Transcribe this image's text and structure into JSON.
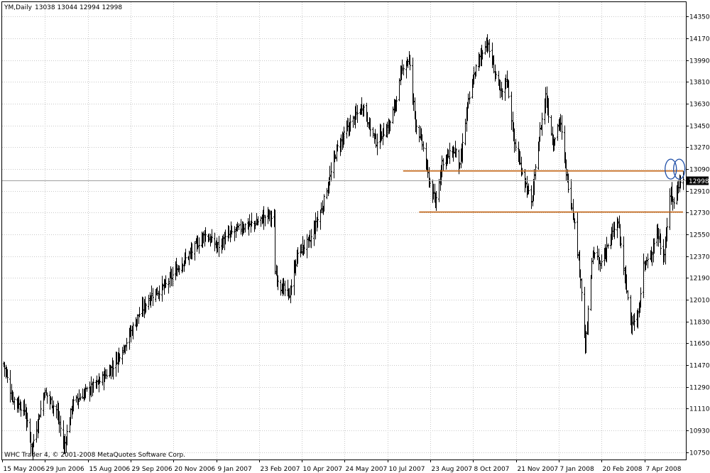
{
  "header": {
    "symbol_label": "YM,Daily",
    "ohlc_label": "13038 13044 12994 12998"
  },
  "copyright": "WHC Trader 4, © 2001-2008 MetaQuotes Software Corp.",
  "price_badge": "12998",
  "colors": {
    "background": "#ffffff",
    "grid": "#c8c8c8",
    "bars": "#000000",
    "support_lines": "#c06010",
    "circles": "#1f4fa8",
    "current_price_line": "#a0a0a0",
    "badge_bg": "#000000",
    "badge_text": "#ffffff"
  },
  "chart_data": {
    "type": "ohlc",
    "title": "YM,Daily",
    "y_ticks": [
      14350,
      14170,
      13990,
      13810,
      13630,
      13450,
      13270,
      13090,
      12910,
      12730,
      12550,
      12370,
      12190,
      12010,
      11830,
      11650,
      11470,
      11290,
      11110,
      10930,
      10750
    ],
    "ylim": [
      10690,
      14470
    ],
    "x_tick_labels": [
      "15 May 2006",
      "29 Jun 2006",
      "15 Aug 2006",
      "29 Sep 2006",
      "20 Nov 2006",
      "9 Jan 2007",
      "23 Feb 2007",
      "10 Apr 2007",
      "24 May 2007",
      "10 Jul 2007",
      "23 Aug 2007",
      "8 Oct 2007",
      "21 Nov 2007",
      "7 Jan 2008",
      "20 Feb 2008",
      "7 Apr 2008"
    ],
    "x_range_dates": [
      "2006-05-15",
      "2008-05-05"
    ],
    "current_price": 12998,
    "horizontal_lines": [
      {
        "y": 13075,
        "x_start": "2007-07-13",
        "x_end": "2008-05-05"
      },
      {
        "y": 12735,
        "x_start": "2007-07-30",
        "x_end": "2008-05-05"
      }
    ],
    "marked_points": [
      {
        "date": "2008-04-22",
        "price": 13090
      },
      {
        "date": "2008-05-01",
        "price": 13090
      }
    ],
    "price_path": [
      {
        "date": "2006-05-15",
        "close": 11480
      },
      {
        "date": "2006-05-24",
        "close": 11200
      },
      {
        "date": "2006-06-06",
        "close": 11100
      },
      {
        "date": "2006-06-14",
        "close": 10780
      },
      {
        "date": "2006-06-27",
        "close": 11250
      },
      {
        "date": "2006-07-10",
        "close": 11100
      },
      {
        "date": "2006-07-18",
        "close": 10790
      },
      {
        "date": "2006-07-27",
        "close": 11150
      },
      {
        "date": "2006-08-10",
        "close": 11250
      },
      {
        "date": "2006-08-23",
        "close": 11320
      },
      {
        "date": "2006-09-07",
        "close": 11450
      },
      {
        "date": "2006-09-21",
        "close": 11650
      },
      {
        "date": "2006-10-05",
        "close": 11880
      },
      {
        "date": "2006-10-19",
        "close": 12050
      },
      {
        "date": "2006-11-02",
        "close": 12120
      },
      {
        "date": "2006-11-16",
        "close": 12280
      },
      {
        "date": "2006-11-30",
        "close": 12400
      },
      {
        "date": "2006-12-14",
        "close": 12550
      },
      {
        "date": "2006-12-28",
        "close": 12450
      },
      {
        "date": "2007-01-11",
        "close": 12560
      },
      {
        "date": "2007-01-25",
        "close": 12620
      },
      {
        "date": "2007-02-08",
        "close": 12650
      },
      {
        "date": "2007-02-20",
        "close": 12720
      },
      {
        "date": "2007-02-26",
        "close": 12650
      },
      {
        "date": "2007-02-27",
        "close": 12250
      },
      {
        "date": "2007-03-05",
        "close": 12120
      },
      {
        "date": "2007-03-14",
        "close": 12050
      },
      {
        "date": "2007-03-23",
        "close": 12400
      },
      {
        "date": "2007-04-05",
        "close": 12500
      },
      {
        "date": "2007-04-19",
        "close": 12800
      },
      {
        "date": "2007-05-03",
        "close": 13250
      },
      {
        "date": "2007-05-17",
        "close": 13450
      },
      {
        "date": "2007-05-31",
        "close": 13620
      },
      {
        "date": "2007-06-07",
        "close": 13450
      },
      {
        "date": "2007-06-14",
        "close": 13320
      },
      {
        "date": "2007-06-28",
        "close": 13450
      },
      {
        "date": "2007-07-05",
        "close": 13650
      },
      {
        "date": "2007-07-13",
        "close": 13950
      },
      {
        "date": "2007-07-19",
        "close": 14000
      },
      {
        "date": "2007-07-26",
        "close": 13480
      },
      {
        "date": "2007-08-02",
        "close": 13300
      },
      {
        "date": "2007-08-09",
        "close": 13000
      },
      {
        "date": "2007-08-16",
        "close": 12800
      },
      {
        "date": "2007-08-23",
        "close": 13150
      },
      {
        "date": "2007-09-06",
        "close": 13250
      },
      {
        "date": "2007-09-11",
        "close": 13100
      },
      {
        "date": "2007-09-19",
        "close": 13600
      },
      {
        "date": "2007-09-27",
        "close": 13900
      },
      {
        "date": "2007-10-09",
        "close": 14150
      },
      {
        "date": "2007-10-16",
        "close": 13950
      },
      {
        "date": "2007-10-25",
        "close": 13700
      },
      {
        "date": "2007-10-31",
        "close": 13850
      },
      {
        "date": "2007-11-08",
        "close": 13300
      },
      {
        "date": "2007-11-15",
        "close": 13100
      },
      {
        "date": "2007-11-26",
        "close": 12800
      },
      {
        "date": "2007-12-04",
        "close": 13350
      },
      {
        "date": "2007-12-11",
        "close": 13700
      },
      {
        "date": "2007-12-19",
        "close": 13300
      },
      {
        "date": "2007-12-26",
        "close": 13500
      },
      {
        "date": "2008-01-03",
        "close": 13000
      },
      {
        "date": "2008-01-10",
        "close": 12700
      },
      {
        "date": "2008-01-17",
        "close": 12200
      },
      {
        "date": "2008-01-22",
        "close": 11600
      },
      {
        "date": "2008-01-30",
        "close": 12400
      },
      {
        "date": "2008-02-07",
        "close": 12300
      },
      {
        "date": "2008-02-14",
        "close": 12450
      },
      {
        "date": "2008-02-26",
        "close": 12650
      },
      {
        "date": "2008-03-04",
        "close": 12200
      },
      {
        "date": "2008-03-10",
        "close": 11850
      },
      {
        "date": "2008-03-17",
        "close": 11800
      },
      {
        "date": "2008-03-24",
        "close": 12300
      },
      {
        "date": "2008-03-31",
        "close": 12350
      },
      {
        "date": "2008-04-07",
        "close": 12600
      },
      {
        "date": "2008-04-14",
        "close": 12350
      },
      {
        "date": "2008-04-22",
        "close": 12900
      },
      {
        "date": "2008-04-25",
        "close": 12800
      },
      {
        "date": "2008-05-01",
        "close": 13000
      },
      {
        "date": "2008-05-05",
        "close": 12998
      }
    ]
  }
}
